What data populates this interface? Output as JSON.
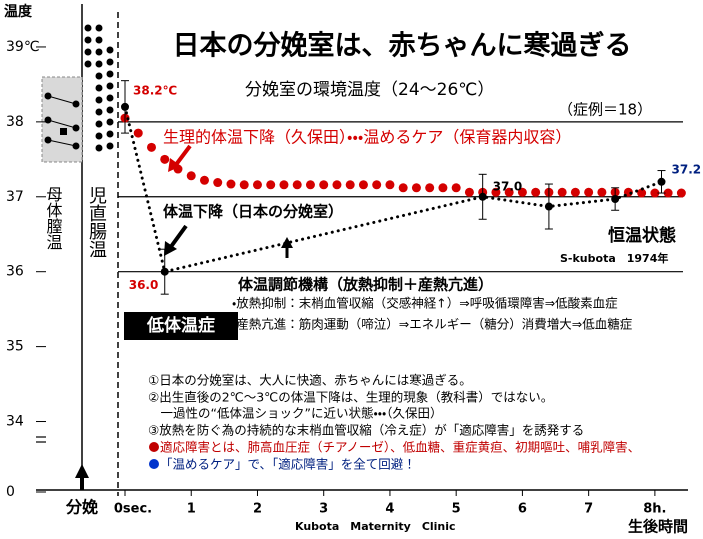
{
  "chart_data": {
    "type": "line",
    "title": "日本の分娩室は、赤ちゃんに寒過ぎる",
    "subtitle": "分娩室の環境温度（24～26℃）",
    "ylabel": "温度",
    "xlabel": "生後時間",
    "ylim": [
      33.7,
      39.6
    ],
    "yticks": [
      {
        "value": 39,
        "label": "39℃"
      },
      38,
      37,
      36,
      35,
      34,
      0
    ],
    "axis_break": true,
    "xlim": [
      0,
      8.5
    ],
    "xticks": [
      {
        "value": 0,
        "label": "0sec."
      },
      1,
      2,
      3,
      4,
      5,
      6,
      7,
      {
        "value": 8,
        "label": "8h."
      }
    ],
    "grid": [
      38,
      37,
      36
    ],
    "series": [
      {
        "name": "生理的体温下降（久保田）・・・温めるケア（保育器内収容）",
        "color": "#d40000",
        "style": "dots",
        "x": [
          0,
          0.2,
          0.4,
          0.6,
          0.8,
          1.0,
          1.2,
          1.4,
          1.6,
          1.8,
          2.0,
          2.2,
          2.4,
          2.6,
          2.8,
          3.0,
          3.2,
          3.4,
          3.6,
          3.8,
          4.0,
          4.2,
          4.4,
          4.6,
          4.8,
          5.0,
          5.2,
          5.4,
          5.6,
          5.8,
          6.0,
          6.2,
          6.4,
          6.6,
          6.8,
          7.0,
          7.2,
          7.4,
          7.6,
          7.8,
          8.0,
          8.2,
          8.4
        ],
        "values": [
          38.05,
          37.85,
          37.66,
          37.5,
          37.37,
          37.28,
          37.22,
          37.19,
          37.17,
          37.16,
          37.16,
          37.16,
          37.16,
          37.16,
          37.16,
          37.16,
          37.16,
          37.16,
          37.16,
          37.16,
          37.16,
          37.12,
          37.12,
          37.12,
          37.12,
          37.12,
          37.06,
          37.06,
          37.06,
          37.06,
          37.06,
          37.06,
          37.06,
          37.06,
          37.06,
          37.06,
          37.06,
          37.06,
          37.06,
          37.05,
          37.05,
          37.05,
          37.05
        ]
      },
      {
        "name": "体温下降（日本の分娩室）",
        "color": "#000000",
        "style": "dotted-line",
        "x": [
          0,
          0.6,
          5.4,
          6.4,
          7.4,
          8.1
        ],
        "values": [
          38.2,
          36.0,
          37.0,
          36.87,
          36.97,
          37.2
        ],
        "errors": [
          0.35,
          0.3,
          0.3,
          0.3,
          0.15,
          0.15
        ],
        "value_labels": [
          "38.2℃",
          "36.0",
          "37.0",
          null,
          null,
          "37.2"
        ]
      }
    ],
    "annotations": {
      "cases": "（症例＝18）",
      "steady": "恒温状態",
      "source": "S-kubota　1974年",
      "maternal": "母体膣温",
      "infant": "児直腸温",
      "birth": "分娩",
      "clinic": "Kubota　Maternity　Clinic",
      "hypothermia": "低体温症",
      "mechanism": "体温調節機構（放熱抑制＋産熱亢進）",
      "mechanism_items": [
        "・放熱抑制：末梢血管収縮（交感神経↑）⇒呼吸循環障害⇒低酸素血症",
        "・産熱亢進：筋肉運動（啼泣）⇒エネルギー（糖分）消費増大⇒低血糖症"
      ],
      "notes": [
        "①日本の分娩室は、大人に快適、赤ちゃんには寒過ぎる。",
        "②出生直後の2℃～3℃の体温下降は、生理的現象（教科書）ではない。",
        "　一過性の“低体温ショック”に近い状態・・・（久保田）",
        "③放熱を防ぐ為の持続的な末梢血管収縮（冷え症）が「適応障害」を誘発する",
        "適応障害とは、肺高血圧症（チアノーゼ）、低血糖、重症黄疸、初期嘔吐、哺乳障害、",
        "「温めるケア」で、「適応障害」を全て回避！"
      ]
    }
  }
}
